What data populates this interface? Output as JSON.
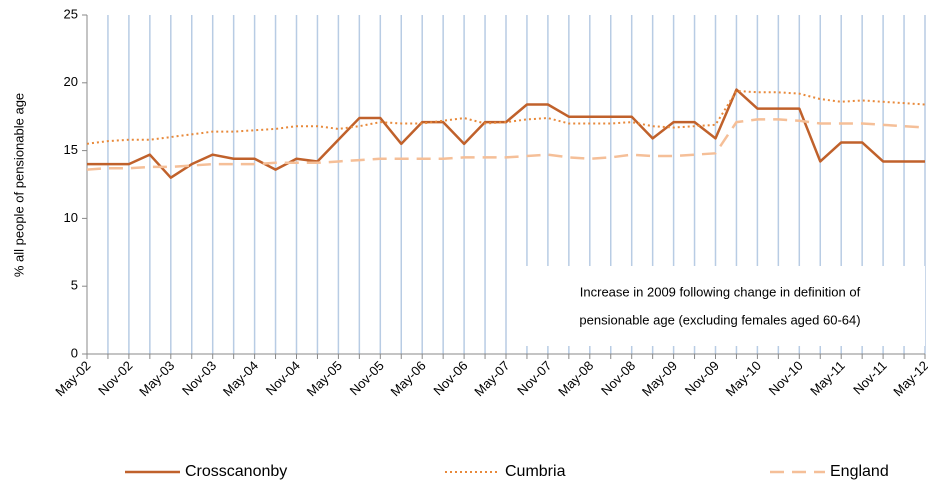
{
  "chart_data": {
    "type": "line",
    "y_label": "% all people of pensionable age",
    "annotation": [
      "Increase in 2009 following change in definition of",
      "pensionable age (excluding females aged 60-64)"
    ],
    "categories": [
      "May-02",
      null,
      "Nov-02",
      null,
      "May-03",
      null,
      "Nov-03",
      null,
      "May-04",
      null,
      "Nov-04",
      null,
      "May-05",
      null,
      "Nov-05",
      null,
      "May-06",
      null,
      "Nov-06",
      null,
      "May-07",
      null,
      "Nov-07",
      null,
      "May-08",
      null,
      "Nov-08",
      null,
      "May-09",
      null,
      "Nov-09",
      null,
      "May-10",
      null,
      "Nov-10",
      null,
      "May-11",
      null,
      "Nov-11",
      null,
      "May-12"
    ],
    "series": [
      {
        "name": "Crosscanonby",
        "color": "#c0612b",
        "style": "solid",
        "values": [
          14.0,
          14.0,
          14.0,
          14.7,
          13.0,
          14.0,
          14.7,
          14.4,
          14.4,
          13.6,
          14.4,
          14.2,
          15.8,
          17.4,
          17.4,
          15.5,
          17.1,
          17.1,
          15.5,
          17.1,
          17.1,
          18.4,
          18.4,
          17.5,
          17.5,
          17.5,
          17.5,
          15.9,
          17.1,
          17.1,
          15.9,
          19.5,
          18.1,
          18.1,
          18.1,
          14.2,
          15.6,
          15.6,
          14.2,
          14.2,
          14.2
        ]
      },
      {
        "name": "Cumbria",
        "color": "#e8893a",
        "style": "dotted",
        "values": [
          15.5,
          15.7,
          15.8,
          15.8,
          16.0,
          16.2,
          16.4,
          16.4,
          16.5,
          16.6,
          16.8,
          16.8,
          16.6,
          16.8,
          17.1,
          17.0,
          17.0,
          17.2,
          17.4,
          17.0,
          17.1,
          17.3,
          17.4,
          17.0,
          17.0,
          17.0,
          17.1,
          16.8,
          16.7,
          16.8,
          16.9,
          19.4,
          19.3,
          19.3,
          19.2,
          18.8,
          18.6,
          18.7,
          18.6,
          18.5,
          18.4
        ]
      },
      {
        "name": "England",
        "color": "#f5bf98",
        "style": "dashed",
        "values": [
          13.6,
          13.7,
          13.7,
          13.8,
          13.8,
          13.9,
          14.0,
          14.0,
          14.0,
          14.1,
          14.1,
          14.1,
          14.2,
          14.3,
          14.4,
          14.4,
          14.4,
          14.4,
          14.5,
          14.5,
          14.5,
          14.6,
          14.7,
          14.5,
          14.4,
          14.5,
          14.7,
          14.6,
          14.6,
          14.7,
          14.8,
          17.1,
          17.3,
          17.3,
          17.2,
          17.0,
          17.0,
          17.0,
          16.9,
          16.8,
          16.7
        ]
      }
    ],
    "ylim": [
      0,
      25
    ],
    "yticks": [
      0,
      5,
      10,
      15,
      20,
      25
    ],
    "vertical_grid": true,
    "grid_color": "#b8cce4",
    "legend": "bottom"
  }
}
